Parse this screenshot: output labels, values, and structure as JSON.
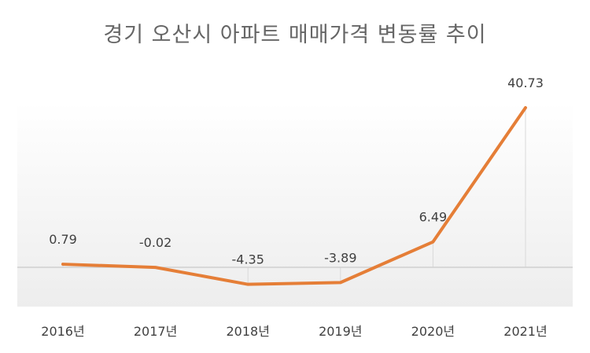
{
  "chart_data": {
    "type": "line",
    "title": "경기 오산시 아파트 매매가격 변동률 추이",
    "categories": [
      "2016년",
      "2017년",
      "2018년",
      "2019년",
      "2020년",
      "2021년"
    ],
    "values": [
      0.79,
      -0.02,
      -4.35,
      -3.89,
      6.49,
      40.73
    ],
    "data_labels": [
      "0.79",
      "-0.02",
      "-4.35",
      "-3.89",
      "6.49",
      "40.73"
    ],
    "xlabel": "",
    "ylabel": "",
    "ylim": [
      -6,
      45
    ],
    "grid": false,
    "legend": "none",
    "colors": {
      "line": "#E57E37",
      "zero_line": "#D0D0D0",
      "drop_line": "#D9D9D9",
      "plot_gradient_top": "#FFFFFF",
      "plot_gradient_bottom": "#EDEDED"
    }
  }
}
